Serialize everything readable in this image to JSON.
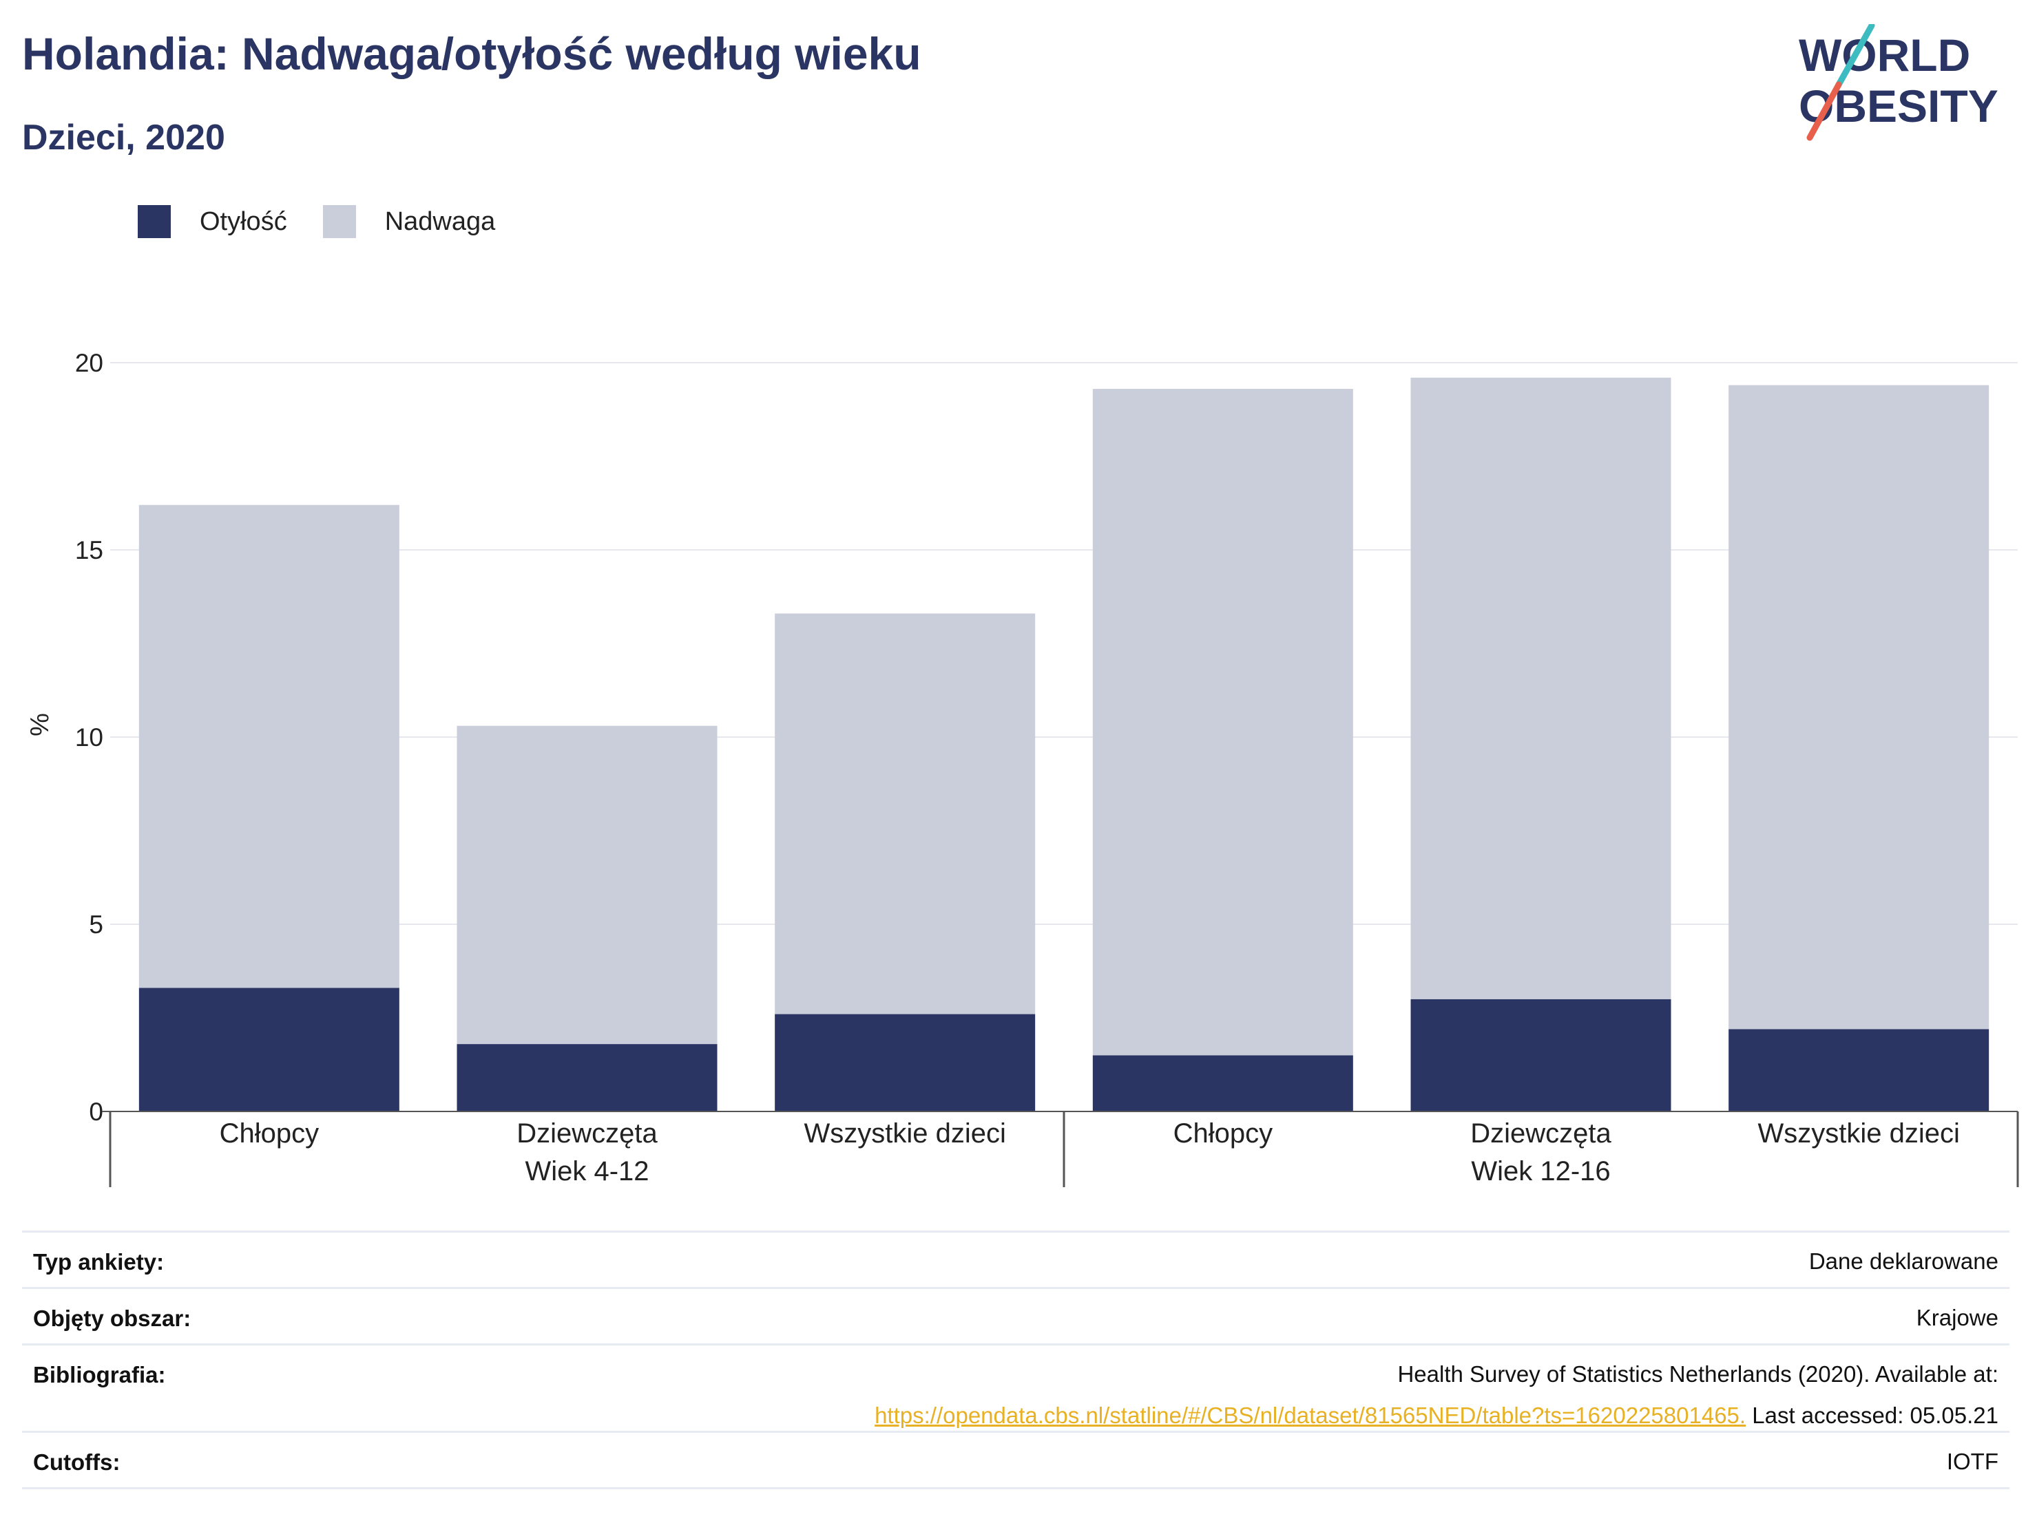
{
  "header": {
    "title": "Holandia: Nadwaga/otyłość według wieku",
    "subtitle": "Dzieci, 2020"
  },
  "logo": {
    "line1": "WORLD",
    "line2": "OBESITY"
  },
  "colors": {
    "obesity": "#2a3564",
    "overweight": "#cacdda",
    "accent_link": "#e8b023",
    "logo_teal": "#3cbcc0",
    "logo_red": "#e8604c"
  },
  "chart_data": {
    "type": "bar",
    "stacked": true,
    "ylabel": "%",
    "ylim": [
      0,
      20
    ],
    "yticks": [
      0,
      5,
      10,
      15,
      20
    ],
    "grid": true,
    "legend_position": "top-left",
    "categories": [
      "Chłopcy",
      "Dziewczęta",
      "Wszystkie dzieci",
      "Chłopcy",
      "Dziewczęta",
      "Wszystkie dzieci"
    ],
    "groups": [
      {
        "label": "Wiek 4-12",
        "categories": [
          0,
          1,
          2
        ]
      },
      {
        "label": "Wiek 12-16",
        "categories": [
          3,
          4,
          5
        ]
      }
    ],
    "series": [
      {
        "name": "Otyłość",
        "values": [
          3.3,
          1.8,
          2.6,
          1.5,
          3.0,
          2.2
        ]
      },
      {
        "name": "Nadwaga",
        "values": [
          12.9,
          8.5,
          10.7,
          17.8,
          16.6,
          17.2
        ]
      }
    ]
  },
  "meta": {
    "rows": [
      {
        "label": "Typ ankiety:",
        "value": "Dane deklarowane"
      },
      {
        "label": "Objęty obszar:",
        "value": "Krajowe"
      },
      {
        "label": "Bibliografia:",
        "value_line1": "Health Survey of Statistics Netherlands (2020). Available at:",
        "link": "https://opendata.cbs.nl/statline/#/CBS/nl/dataset/81565NED/table?ts=1620225801465.",
        "value_after_link": " Last accessed: 05.05.21"
      },
      {
        "label": "Cutoffs:",
        "value": "IOTF"
      }
    ]
  }
}
